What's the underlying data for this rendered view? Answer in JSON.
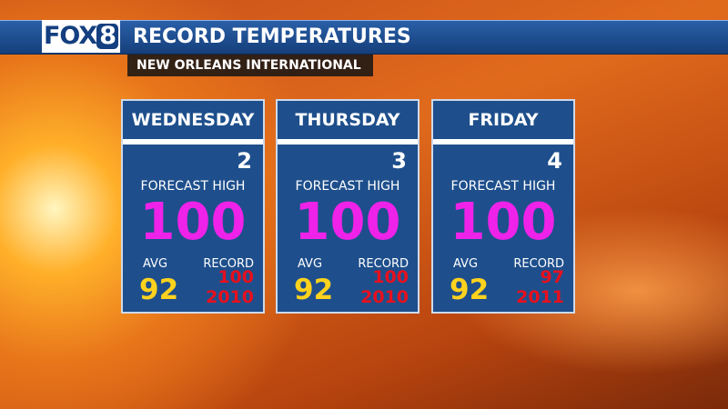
{
  "header": {
    "logo": {
      "brand": "FOX",
      "number": "8"
    },
    "title": "RECORD TEMPERATURES",
    "subtitle": "NEW ORLEANS INTERNATIONAL"
  },
  "cards": [
    {
      "day": "WEDNESDAY",
      "date": 2,
      "forecast_label": "FORECAST HIGH",
      "forecast_high": 100,
      "avg_label": "AVG",
      "avg": 92,
      "record_label": "RECORD",
      "record": 100,
      "record_year": 2010
    },
    {
      "day": "THURSDAY",
      "date": 3,
      "forecast_label": "FORECAST HIGH",
      "forecast_high": 100,
      "avg_label": "AVG",
      "avg": 92,
      "record_label": "RECORD",
      "record": 100,
      "record_year": 2010
    },
    {
      "day": "FRIDAY",
      "date": 4,
      "forecast_label": "FORECAST HIGH",
      "forecast_high": 100,
      "avg_label": "AVG",
      "avg": 92,
      "record_label": "RECORD",
      "record": 97,
      "record_year": 2011
    }
  ]
}
